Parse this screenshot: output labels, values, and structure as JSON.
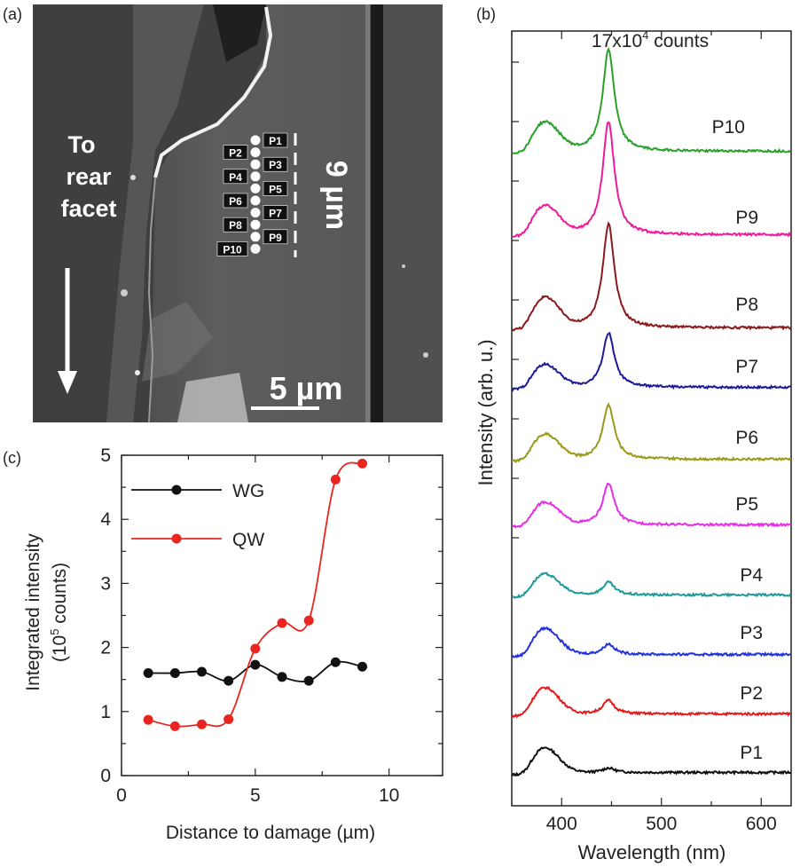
{
  "panel_a": {
    "label": "(a)",
    "arrow_text": [
      "To",
      "rear",
      "facet"
    ],
    "points": [
      "P1",
      "P2",
      "P3",
      "P4",
      "P5",
      "P6",
      "P7",
      "P8",
      "P9",
      "P10"
    ],
    "vertical_scale": "9 µm",
    "scale_bar": "5 µm"
  },
  "panel_b": {
    "label": "(b)",
    "scale_note_main": "17x10",
    "scale_note_exp": "4",
    "scale_note_unit": " counts",
    "ylabel": "Intensity (arb. u.)",
    "xlabel": "Wavelength (nm)",
    "xticks": [
      400,
      500,
      600
    ]
  },
  "panel_c": {
    "label": "(c)",
    "xlabel": "Distance to damage (µm)",
    "ylabel_line1": "Integrated intensity",
    "ylabel_line2_pre": "(10",
    "ylabel_line2_exp": "5",
    "ylabel_line2_post": " counts)",
    "xticks": [
      0,
      5,
      10
    ],
    "yticks": [
      0,
      1,
      2,
      3,
      4,
      5
    ]
  },
  "chart_data": [
    {
      "type": "line",
      "panel": "(b)",
      "xlabel": "Wavelength (nm)",
      "ylabel": "Intensity (arb. u.)",
      "xlim": [
        350,
        630
      ],
      "annotation": "17x10^4 counts",
      "series": [
        {
          "name": "P1",
          "color": "#111111",
          "baseline": 0.0,
          "peak380": 0.33,
          "peak447": 0.06
        },
        {
          "name": "P2",
          "color": "#e41a1c",
          "baseline": 0.0,
          "peak380": 0.35,
          "peak447": 0.18
        },
        {
          "name": "P3",
          "color": "#2233dd",
          "baseline": 0.0,
          "peak380": 0.35,
          "peak447": 0.14
        },
        {
          "name": "P4",
          "color": "#1f9a9a",
          "baseline": 0.0,
          "peak380": 0.28,
          "peak447": 0.17
        },
        {
          "name": "P5",
          "color": "#e62ee6",
          "baseline": 0.0,
          "peak380": 0.3,
          "peak447": 0.55
        },
        {
          "name": "P6",
          "color": "#9a9a1a",
          "baseline": 0.0,
          "peak380": 0.33,
          "peak447": 0.72
        },
        {
          "name": "P7",
          "color": "#1a1a9a",
          "baseline": 0.0,
          "peak380": 0.3,
          "peak447": 0.72
        },
        {
          "name": "P8",
          "color": "#8b1a1a",
          "baseline": 0.0,
          "peak380": 0.4,
          "peak447": 1.38
        },
        {
          "name": "P9",
          "color": "#ee1a99",
          "baseline": 0.0,
          "peak380": 0.38,
          "peak447": 1.5
        },
        {
          "name": "P10",
          "color": "#2aa02a",
          "baseline": 0.0,
          "peak380": 0.38,
          "peak447": 1.35
        }
      ]
    },
    {
      "type": "line",
      "panel": "(c)",
      "xlabel": "Distance to damage (µm)",
      "ylabel": "Integrated intensity (10^5 counts)",
      "xlim": [
        0,
        12
      ],
      "ylim": [
        0,
        5
      ],
      "legend": "top-left",
      "series": [
        {
          "name": "WG",
          "color": "#111111",
          "x": [
            1,
            2,
            3,
            4,
            5,
            6,
            7,
            8,
            9
          ],
          "y": [
            1.6,
            1.6,
            1.62,
            1.48,
            1.73,
            1.54,
            1.48,
            1.77,
            1.7
          ]
        },
        {
          "name": "QW",
          "color": "#e8251f",
          "x": [
            1,
            2,
            3,
            4,
            5,
            6,
            7,
            8,
            9
          ],
          "y": [
            0.87,
            0.77,
            0.8,
            0.88,
            1.98,
            2.38,
            2.42,
            4.62,
            4.87
          ]
        }
      ]
    }
  ]
}
